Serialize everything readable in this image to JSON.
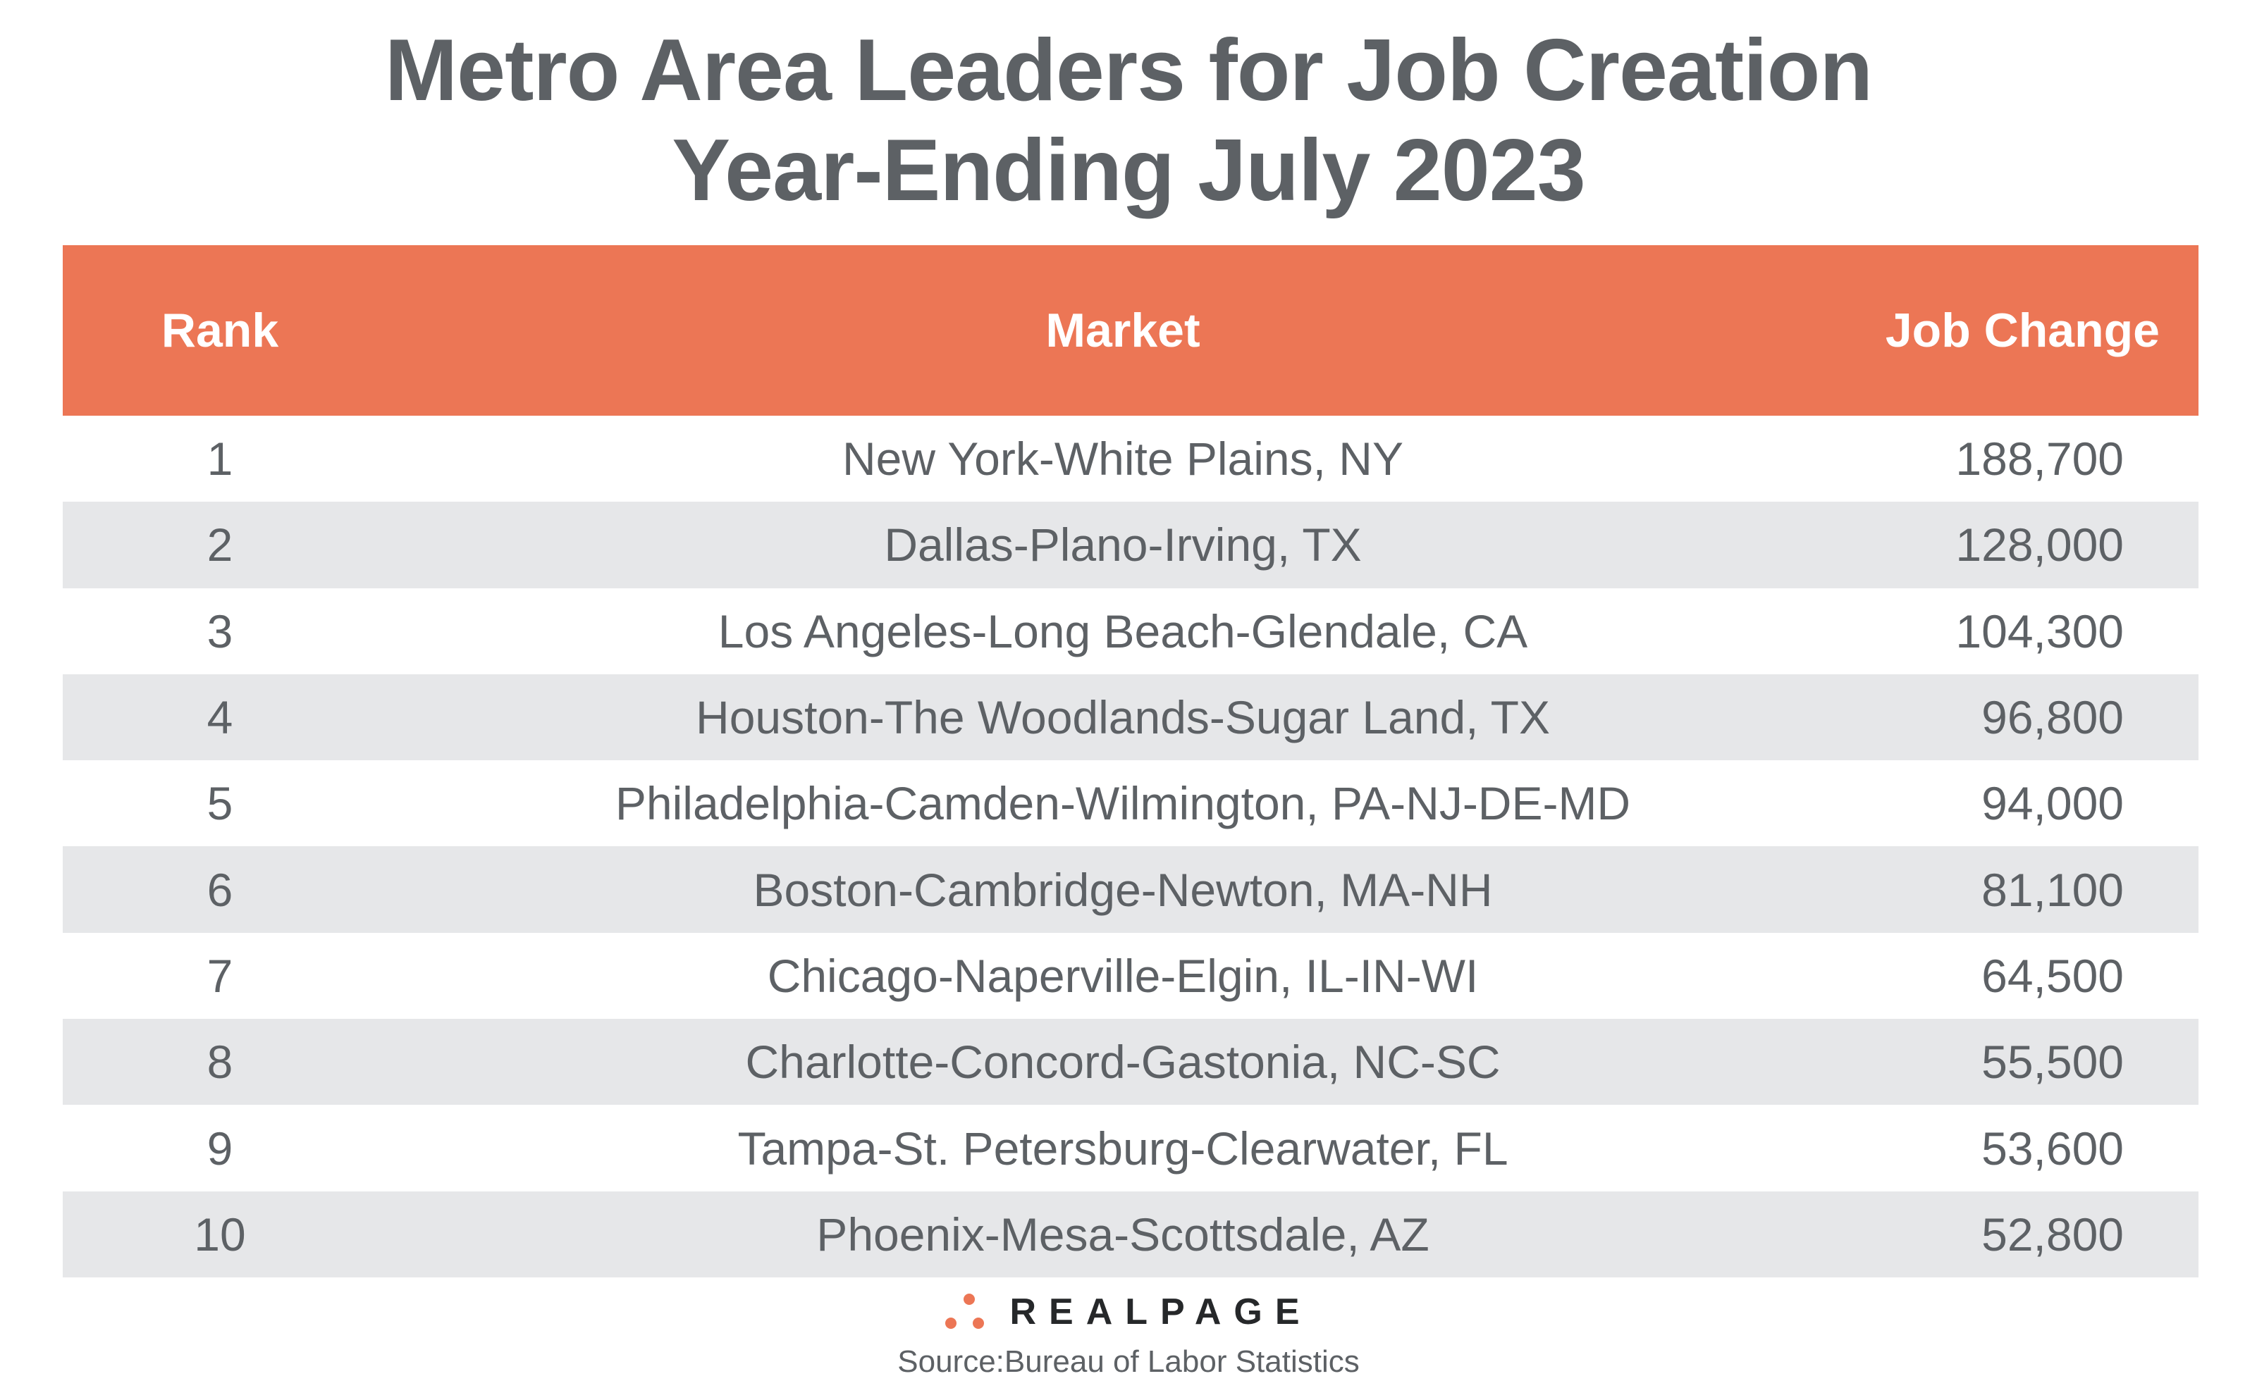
{
  "title": {
    "line1": "Metro Area Leaders for Job Creation",
    "line2": "Year-Ending July 2023"
  },
  "colors": {
    "header_bg": "#ec7655",
    "alt_row_bg": "#e6e7e9",
    "text": "#5d6165"
  },
  "table": {
    "headers": {
      "rank": "Rank",
      "market": "Market",
      "job_change": "Job Change"
    },
    "rows": [
      {
        "rank": "1",
        "market": "New York-White Plains, NY",
        "job_change": "188,700"
      },
      {
        "rank": "2",
        "market": "Dallas-Plano-Irving, TX",
        "job_change": "128,000"
      },
      {
        "rank": "3",
        "market": "Los Angeles-Long Beach-Glendale, CA",
        "job_change": "104,300"
      },
      {
        "rank": "4",
        "market": "Houston-The Woodlands-Sugar Land, TX",
        "job_change": "96,800"
      },
      {
        "rank": "5",
        "market": "Philadelphia-Camden-Wilmington, PA-NJ-DE-MD",
        "job_change": "94,000"
      },
      {
        "rank": "6",
        "market": "Boston-Cambridge-Newton, MA-NH",
        "job_change": "81,100"
      },
      {
        "rank": "7",
        "market": "Chicago-Naperville-Elgin, IL-IN-WI",
        "job_change": "64,500"
      },
      {
        "rank": "8",
        "market": "Charlotte-Concord-Gastonia, NC-SC",
        "job_change": "55,500"
      },
      {
        "rank": "9",
        "market": "Tampa-St. Petersburg-Clearwater, FL",
        "job_change": "53,600"
      },
      {
        "rank": "10",
        "market": "Phoenix-Mesa-Scottsdale, AZ",
        "job_change": "52,800"
      }
    ]
  },
  "logo": {
    "text": "REALPAGE",
    "icon": "three-dots-logo-icon"
  },
  "source": "Source:Bureau of Labor Statistics"
}
